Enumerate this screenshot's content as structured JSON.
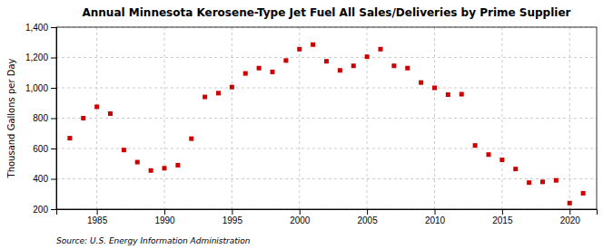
{
  "chart_data": {
    "type": "scatter",
    "title": "Annual Minnesota Kerosene-Type Jet Fuel All Sales/Deliveries by Prime Supplier",
    "ylabel": "Thousand Gallons per Day",
    "source": "Source: U.S. Energy Information Administration",
    "x": [
      1983,
      1984,
      1985,
      1986,
      1987,
      1988,
      1989,
      1990,
      1991,
      1992,
      1993,
      1994,
      1995,
      1996,
      1997,
      1998,
      1999,
      2000,
      2001,
      2002,
      2003,
      2004,
      2005,
      2006,
      2007,
      2008,
      2009,
      2010,
      2011,
      2012,
      2013,
      2014,
      2015,
      2016,
      2017,
      2018,
      2019,
      2020,
      2021
    ],
    "values": [
      668,
      800,
      875,
      830,
      590,
      510,
      455,
      470,
      490,
      665,
      940,
      965,
      1005,
      1095,
      1130,
      1105,
      1180,
      1255,
      1285,
      1175,
      1115,
      1145,
      1205,
      1255,
      1145,
      1130,
      1035,
      1000,
      955,
      958,
      620,
      560,
      525,
      465,
      375,
      380,
      390,
      240,
      305
    ],
    "color": "#cc0000",
    "marker": "square",
    "xlim": [
      1982,
      2022
    ],
    "xticks": [
      1985,
      1990,
      1995,
      2000,
      2005,
      2010,
      2015,
      2020
    ],
    "ylim": [
      200,
      1400
    ],
    "yticks": [
      200,
      400,
      600,
      800,
      {
        "value": 1000,
        "label": "1,000"
      },
      {
        "value": 1200,
        "label": "1,200"
      },
      {
        "value": 1400,
        "label": "1,400"
      }
    ],
    "grid": true
  }
}
